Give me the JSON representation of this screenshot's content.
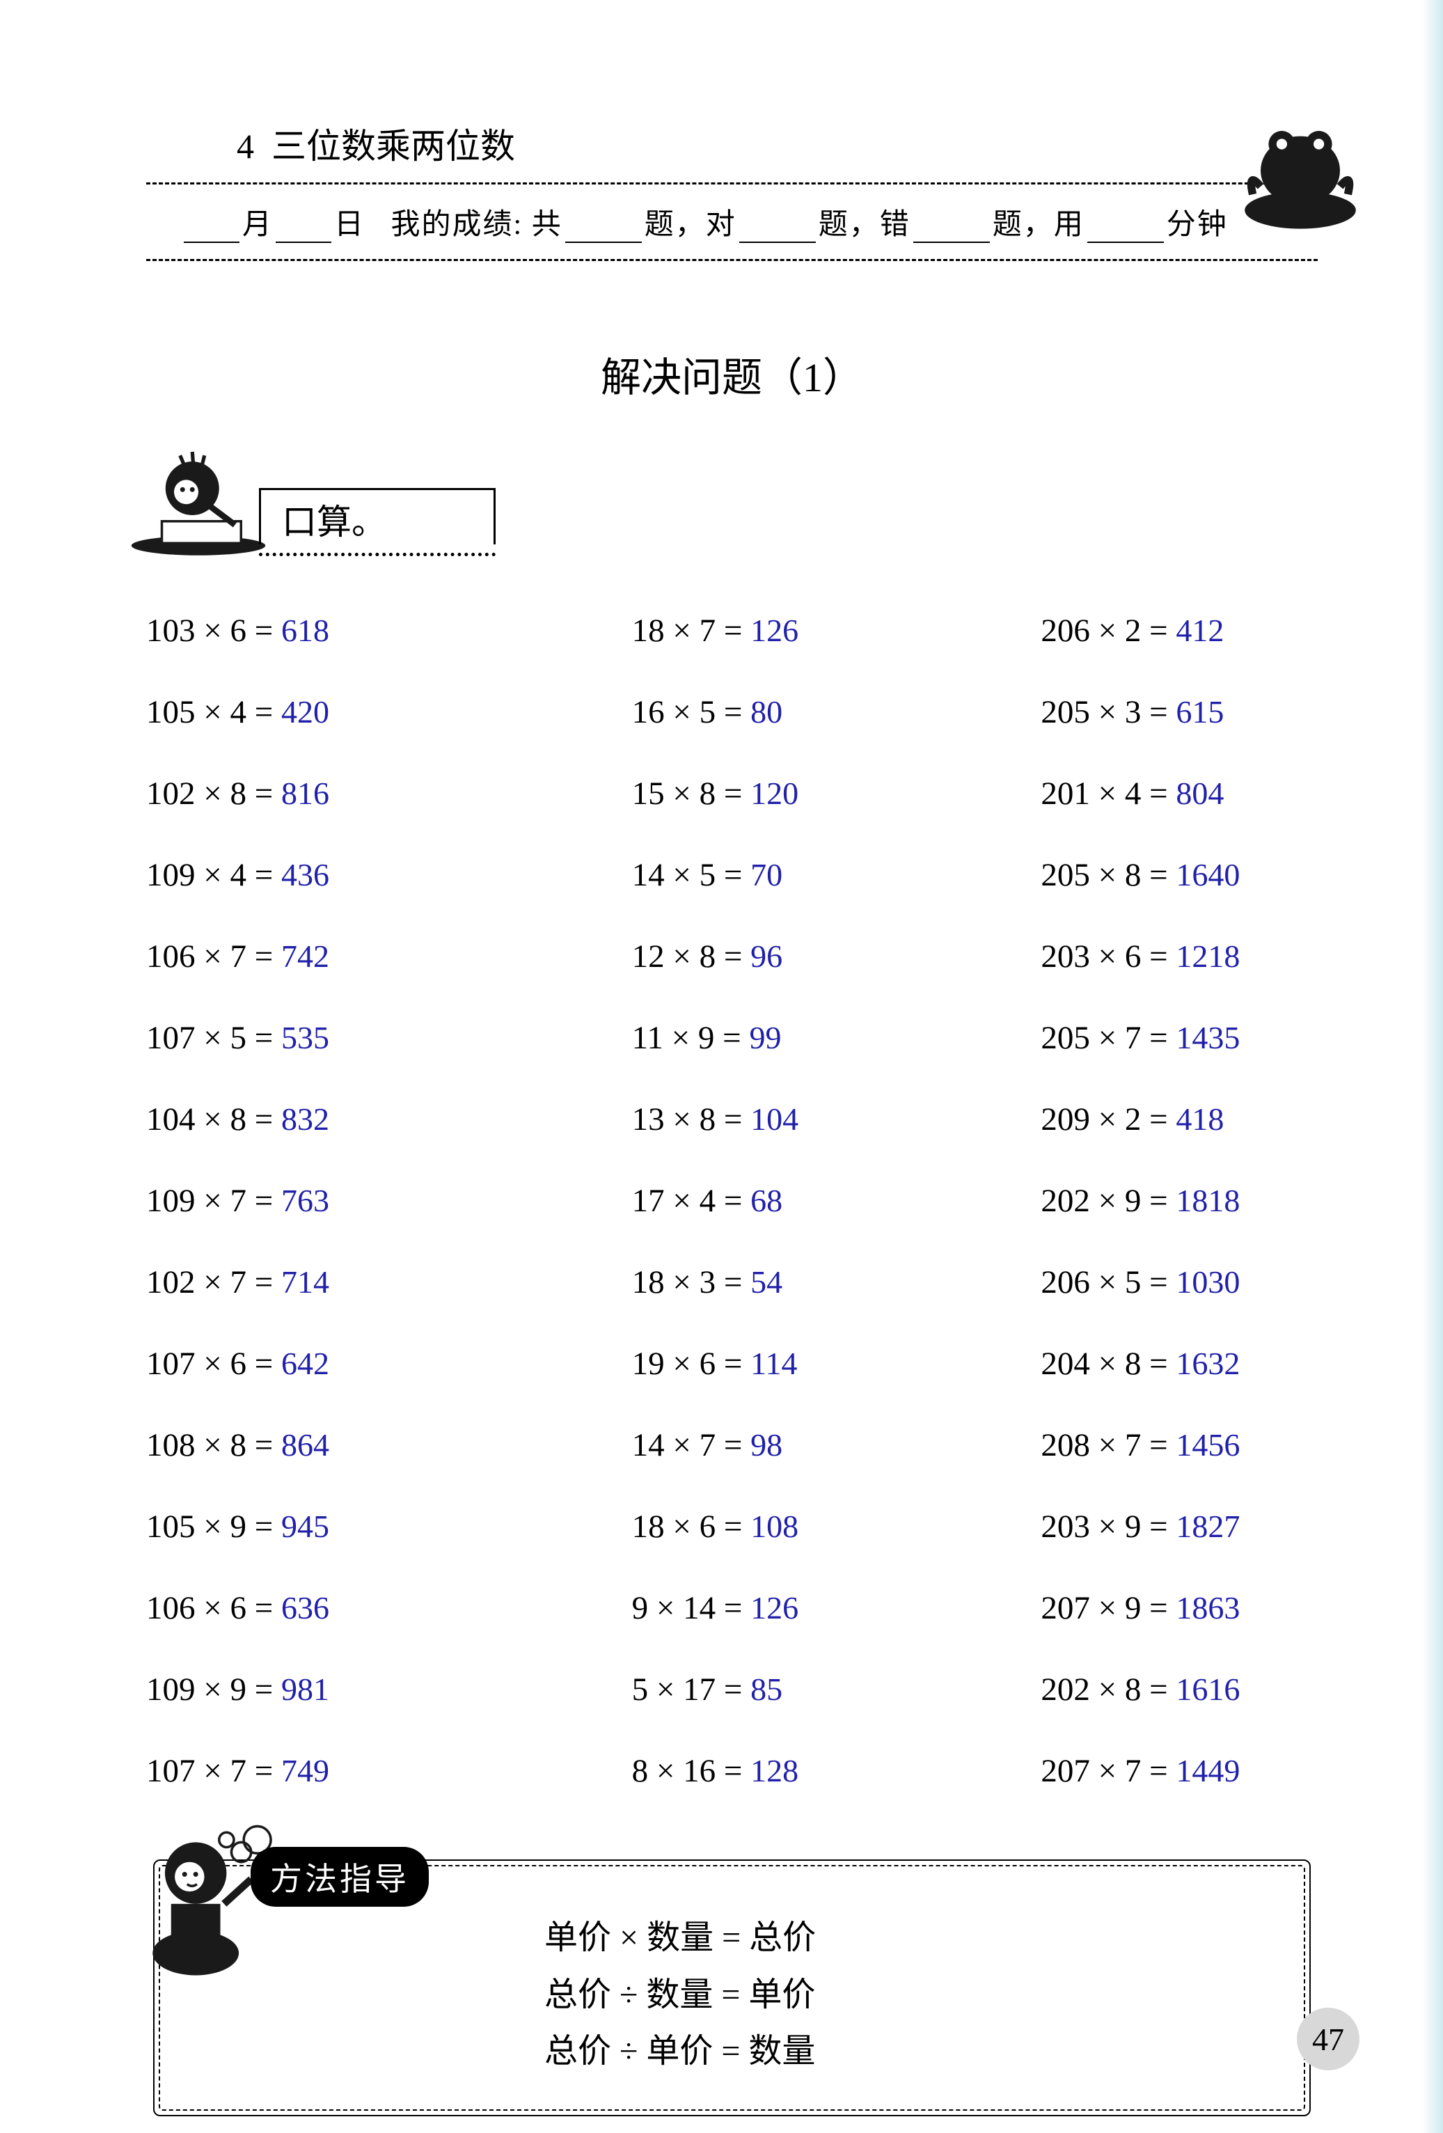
{
  "chapter": {
    "number": "4",
    "title": "三位数乘两位数"
  },
  "header": {
    "month": "月",
    "day": "日",
    "score_prefix": "我的成绩: 共",
    "ti1": "题，对",
    "ti2": "题，错",
    "ti3": "题，用",
    "min": "分钟"
  },
  "section_title": "解决问题（1）",
  "kousuan_label": "口算。",
  "answer_color": "#2020aa",
  "text_color": "#000000",
  "background_color": "#ffffff",
  "font_sizes": {
    "chapter": 50,
    "header": 42,
    "section": 58,
    "problem": 47,
    "answer": 46,
    "formula": 48,
    "badge": 46,
    "pagenum": 46
  },
  "problems": {
    "col1": [
      {
        "expr": "103 × 6 =",
        "ans": "618"
      },
      {
        "expr": "105 × 4 =",
        "ans": "420"
      },
      {
        "expr": "102 × 8 =",
        "ans": "816"
      },
      {
        "expr": "109 × 4 =",
        "ans": "436"
      },
      {
        "expr": "106 × 7 =",
        "ans": "742"
      },
      {
        "expr": "107 × 5 =",
        "ans": "535"
      },
      {
        "expr": "104 × 8 =",
        "ans": "832"
      },
      {
        "expr": "109 × 7 =",
        "ans": "763"
      },
      {
        "expr": "102 × 7 =",
        "ans": "714"
      },
      {
        "expr": "107 × 6 =",
        "ans": "642"
      },
      {
        "expr": "108 × 8 =",
        "ans": "864"
      },
      {
        "expr": "105 × 9 =",
        "ans": "945"
      },
      {
        "expr": "106 × 6 =",
        "ans": "636"
      },
      {
        "expr": "109 × 9 =",
        "ans": "981"
      },
      {
        "expr": "107 × 7 =",
        "ans": "749"
      }
    ],
    "col2": [
      {
        "expr": "18 × 7 =",
        "ans": "126"
      },
      {
        "expr": "16 × 5 =",
        "ans": "80"
      },
      {
        "expr": "15 × 8 =",
        "ans": "120"
      },
      {
        "expr": "14 × 5 =",
        "ans": "70"
      },
      {
        "expr": "12 × 8 =",
        "ans": "96"
      },
      {
        "expr": "11 × 9 =",
        "ans": "99"
      },
      {
        "expr": "13 × 8 =",
        "ans": "104"
      },
      {
        "expr": "17 × 4 =",
        "ans": "68"
      },
      {
        "expr": "18 × 3 =",
        "ans": "54"
      },
      {
        "expr": "19 × 6 =",
        "ans": "114"
      },
      {
        "expr": "14 × 7 =",
        "ans": "98"
      },
      {
        "expr": "18 × 6 =",
        "ans": "108"
      },
      {
        "expr": "9 × 14 =",
        "ans": "126"
      },
      {
        "expr": "5 × 17 =",
        "ans": "85"
      },
      {
        "expr": "8 × 16 =",
        "ans": "128"
      }
    ],
    "col3": [
      {
        "expr": "206 × 2 =",
        "ans": "412"
      },
      {
        "expr": "205 × 3 =",
        "ans": "615"
      },
      {
        "expr": "201 × 4 =",
        "ans": "804"
      },
      {
        "expr": "205 × 8 =",
        "ans": "1640"
      },
      {
        "expr": "203 × 6 =",
        "ans": "1218"
      },
      {
        "expr": "205 × 7 =",
        "ans": "1435"
      },
      {
        "expr": "209 × 2 =",
        "ans": "418"
      },
      {
        "expr": "202 × 9 =",
        "ans": "1818"
      },
      {
        "expr": "206 × 5 =",
        "ans": "1030"
      },
      {
        "expr": "204 × 8 =",
        "ans": "1632"
      },
      {
        "expr": "208 × 7 =",
        "ans": "1456"
      },
      {
        "expr": "203 × 9 =",
        "ans": "1827"
      },
      {
        "expr": "207 × 9 =",
        "ans": "1863"
      },
      {
        "expr": "202 × 8 =",
        "ans": "1616"
      },
      {
        "expr": "207 × 7 =",
        "ans": "1449"
      }
    ]
  },
  "method": {
    "badge": "方法指导",
    "formulas": [
      "单价 × 数量 = 总价",
      "总价 ÷ 数量 = 单价",
      "总价 ÷ 单价 = 数量"
    ]
  },
  "page_number": "47"
}
